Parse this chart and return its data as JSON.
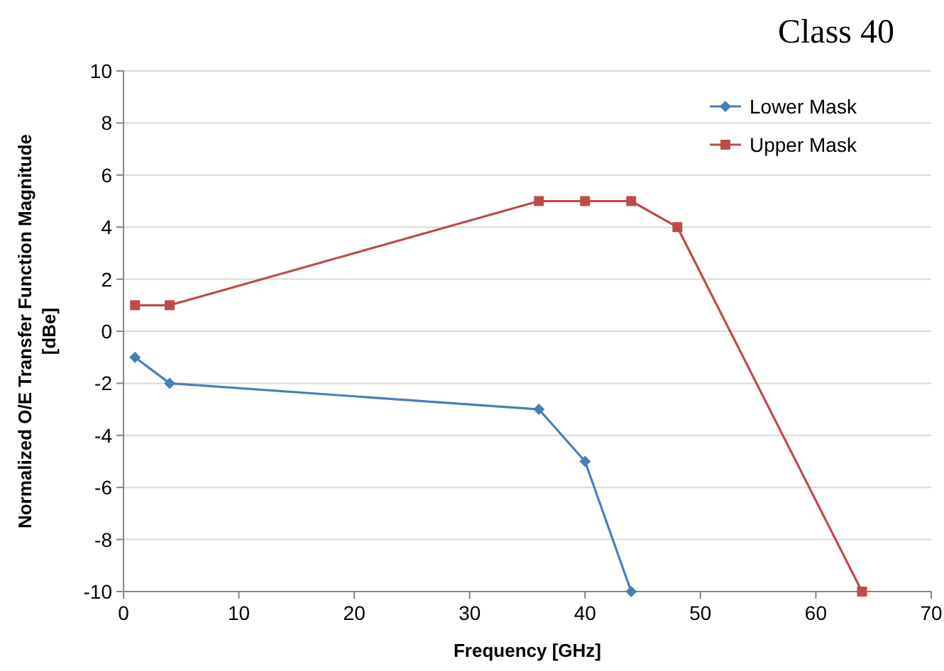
{
  "chart_data": {
    "type": "line",
    "title": "Class 40",
    "xlabel": "Frequency [GHz]",
    "ylabel": "Normalized O/E Transfer Function Magnitude\n[dBe]",
    "xlim": [
      0,
      70
    ],
    "xticks": [
      0,
      10,
      20,
      30,
      40,
      50,
      60,
      70
    ],
    "ylim": [
      -10,
      10
    ],
    "yticks": [
      -10,
      -8,
      -6,
      -4,
      -2,
      0,
      2,
      4,
      6,
      8,
      10
    ],
    "grid": "y",
    "legend": "top right",
    "series": [
      {
        "name": "Lower Mask",
        "color": "#4a7ebb",
        "marker": "diamond",
        "x": [
          1,
          4,
          36,
          40,
          44
        ],
        "values": [
          -1,
          -2,
          -3,
          -5,
          -10
        ]
      },
      {
        "name": "Upper Mask",
        "color": "#be4b48",
        "marker": "square",
        "x": [
          1,
          4,
          36,
          40,
          44,
          48,
          64
        ],
        "values": [
          1,
          1,
          5,
          5,
          5,
          4,
          -10
        ]
      }
    ]
  }
}
